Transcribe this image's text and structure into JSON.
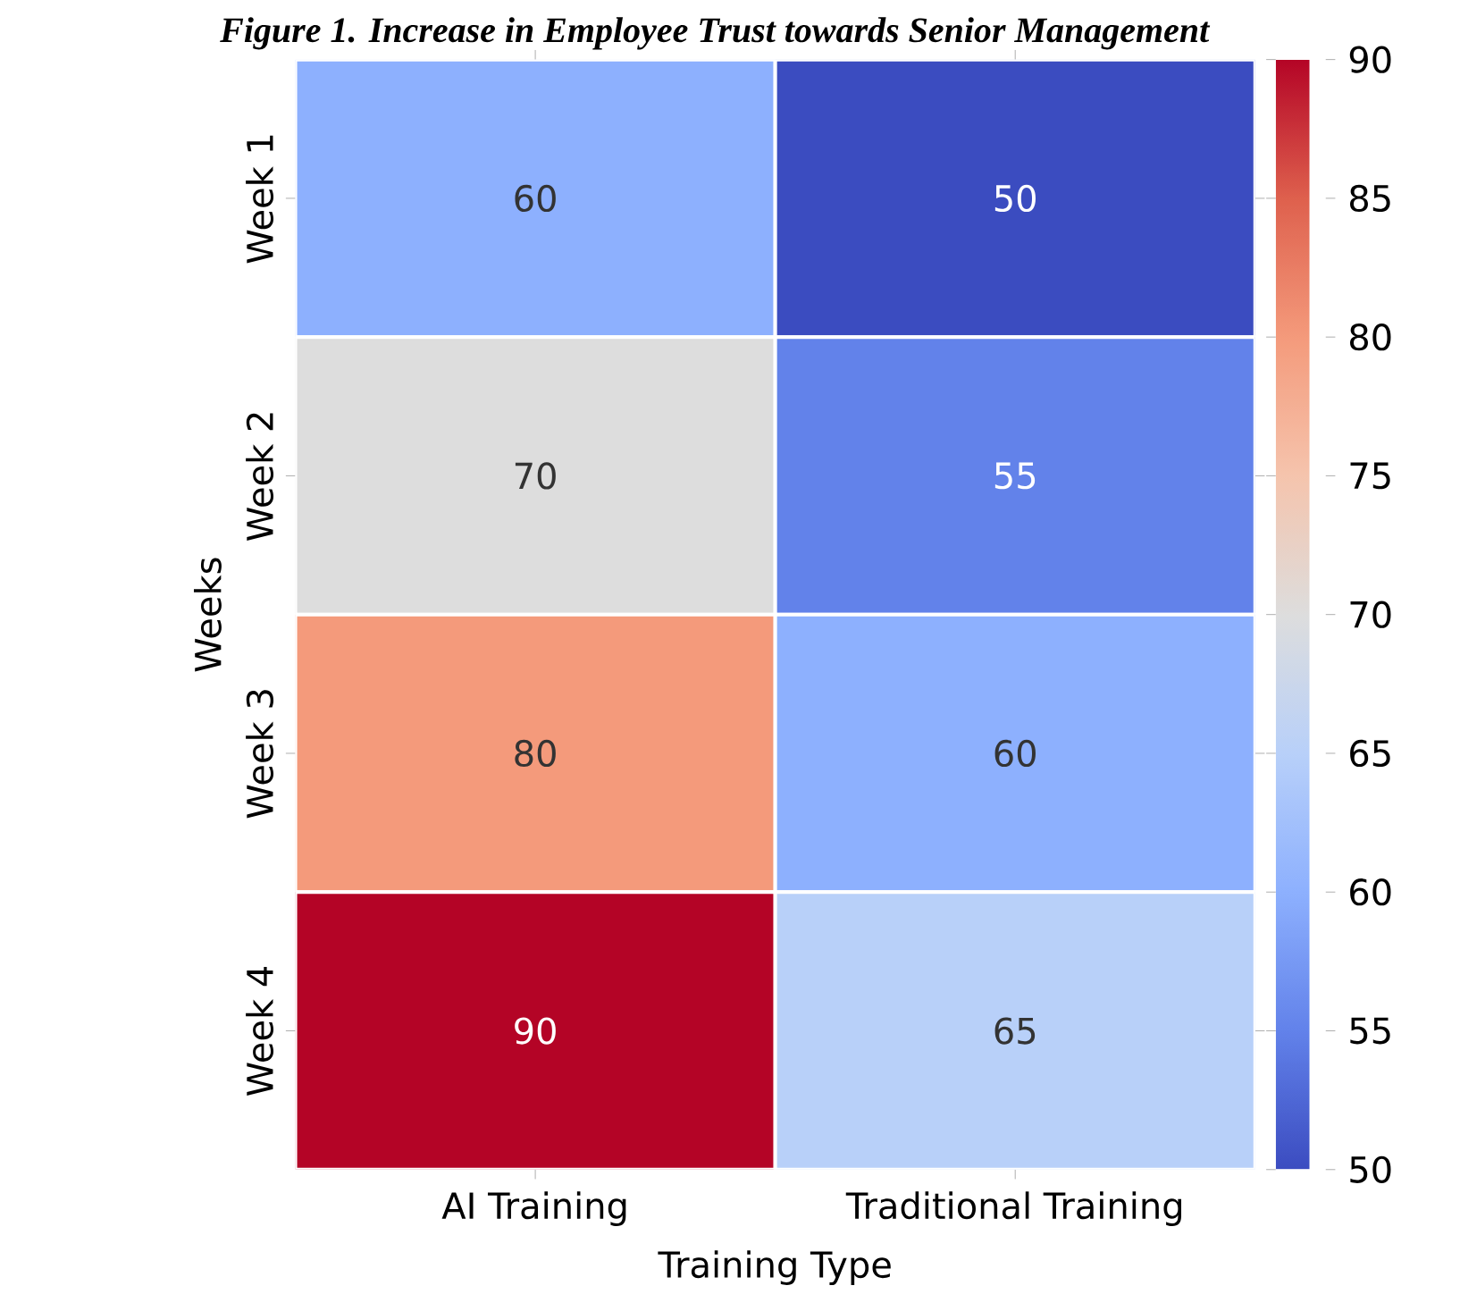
{
  "chart_data": {
    "type": "heatmap",
    "title": "Figure 1. Increase in Employee Trust towards Senior Management",
    "xlabel": "Training Type",
    "ylabel": "Weeks",
    "categories": [
      "AI Training",
      "Traditional Training"
    ],
    "y_categories": [
      "Week 1",
      "Week 2",
      "Week 3",
      "Week 4"
    ],
    "cells": [
      [
        60,
        50
      ],
      [
        70,
        55
      ],
      [
        80,
        60
      ],
      [
        90,
        65
      ]
    ],
    "data_labels": true,
    "clim": [
      50,
      90
    ],
    "cticks": [
      50,
      55,
      60,
      65,
      70,
      75,
      80,
      85,
      90
    ]
  }
}
